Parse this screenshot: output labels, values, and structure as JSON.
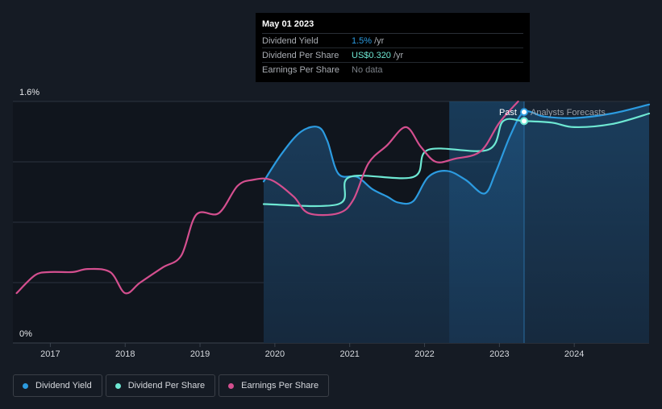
{
  "tooltip": {
    "date": "May 01 2023",
    "rows": [
      {
        "label": "Dividend Yield",
        "value": "1.5%",
        "unit": "/yr",
        "color": "#2c9be0"
      },
      {
        "label": "Dividend Per Share",
        "value": "US$0.320",
        "unit": "/yr",
        "color": "#6ee8d3"
      },
      {
        "label": "Earnings Per Share",
        "value": "No data",
        "unit": "",
        "color": "#7b8087"
      }
    ]
  },
  "labels": {
    "past": "Past",
    "forecast": "Analysts Forecasts"
  },
  "legend": [
    {
      "label": "Dividend Yield",
      "color": "#2c9be0"
    },
    {
      "label": "Dividend Per Share",
      "color": "#6ee8d3"
    },
    {
      "label": "Earnings Per Share",
      "color": "#d44f8f"
    }
  ],
  "chart_data": {
    "type": "line",
    "title": "",
    "xlabel": "",
    "ylabel": "",
    "xlim": [
      2016.5,
      2025.0
    ],
    "ylim": [
      0,
      1.6
    ],
    "y_tick_labels": [
      "0%",
      "1.6%"
    ],
    "x_ticks": [
      2017,
      2018,
      2019,
      2020,
      2021,
      2022,
      2023,
      2024
    ],
    "x_tick_labels": [
      "2017",
      "2018",
      "2019",
      "2020",
      "2021",
      "2022",
      "2023",
      "2024"
    ],
    "past_end": 2023.33,
    "highlight_start": 2022.33,
    "series": [
      {
        "name": "Dividend Yield",
        "color": "#2c9be0",
        "points": [
          [
            2019.85,
            1.07
          ],
          [
            2020.1,
            1.26
          ],
          [
            2020.35,
            1.4
          ],
          [
            2020.58,
            1.43
          ],
          [
            2020.7,
            1.34
          ],
          [
            2020.85,
            1.12
          ],
          [
            2021.1,
            1.1
          ],
          [
            2021.3,
            1.02
          ],
          [
            2021.5,
            0.97
          ],
          [
            2021.65,
            0.93
          ],
          [
            2021.85,
            0.94
          ],
          [
            2022.05,
            1.1
          ],
          [
            2022.3,
            1.14
          ],
          [
            2022.55,
            1.08
          ],
          [
            2022.8,
            0.99
          ],
          [
            2022.95,
            1.13
          ],
          [
            2023.15,
            1.38
          ],
          [
            2023.33,
            1.53
          ],
          [
            2023.6,
            1.5
          ],
          [
            2024.0,
            1.49
          ],
          [
            2024.5,
            1.52
          ],
          [
            2025.0,
            1.58
          ]
        ]
      },
      {
        "name": "Dividend Per Share",
        "color": "#6ee8d3",
        "points": [
          [
            2019.85,
            0.92
          ],
          [
            2020.85,
            0.92
          ],
          [
            2021.0,
            1.1
          ],
          [
            2021.85,
            1.1
          ],
          [
            2022.05,
            1.28
          ],
          [
            2022.85,
            1.28
          ],
          [
            2023.05,
            1.47
          ],
          [
            2023.33,
            1.47
          ],
          [
            2023.7,
            1.46
          ],
          [
            2024.0,
            1.43
          ],
          [
            2024.5,
            1.45
          ],
          [
            2025.0,
            1.52
          ]
        ]
      },
      {
        "name": "Earnings Per Share",
        "color": "#d44f8f",
        "points": [
          [
            2016.55,
            0.33
          ],
          [
            2016.8,
            0.45
          ],
          [
            2017.0,
            0.47
          ],
          [
            2017.3,
            0.47
          ],
          [
            2017.5,
            0.49
          ],
          [
            2017.8,
            0.47
          ],
          [
            2018.0,
            0.33
          ],
          [
            2018.2,
            0.4
          ],
          [
            2018.5,
            0.5
          ],
          [
            2018.75,
            0.58
          ],
          [
            2018.95,
            0.85
          ],
          [
            2019.25,
            0.86
          ],
          [
            2019.5,
            1.04
          ],
          [
            2019.7,
            1.08
          ],
          [
            2019.95,
            1.08
          ],
          [
            2020.25,
            0.97
          ],
          [
            2020.45,
            0.86
          ],
          [
            2020.85,
            0.86
          ],
          [
            2021.05,
            0.95
          ],
          [
            2021.25,
            1.19
          ],
          [
            2021.5,
            1.31
          ],
          [
            2021.75,
            1.43
          ],
          [
            2021.95,
            1.3
          ],
          [
            2022.15,
            1.2
          ],
          [
            2022.4,
            1.22
          ],
          [
            2022.75,
            1.27
          ],
          [
            2023.0,
            1.46
          ],
          [
            2023.25,
            1.6
          ]
        ]
      }
    ],
    "markers": [
      {
        "series": "Dividend Yield",
        "x": 2023.33,
        "y": 1.53
      },
      {
        "series": "Dividend Per Share",
        "x": 2023.33,
        "y": 1.47
      }
    ]
  }
}
